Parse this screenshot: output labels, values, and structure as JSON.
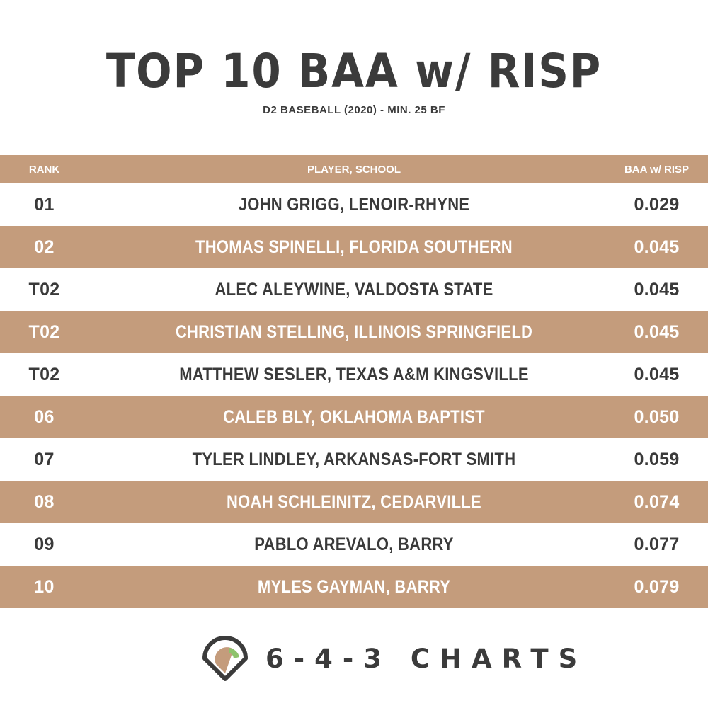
{
  "title": "TOP 10 BAA w/ RISP",
  "subtitle": "D2 BASEBALL (2020) - MIN. 25 BF",
  "colors": {
    "stripe": "#c49c7c",
    "text_dark": "#3a3a3a",
    "text_light": "#ffffff",
    "logo_green": "#8dc26b",
    "logo_tan": "#c49c7c"
  },
  "chart_data": {
    "type": "table",
    "columns": [
      "RANK",
      "PLAYER, SCHOOL",
      "BAA w/ RISP"
    ],
    "rows": [
      {
        "rank": "01",
        "player": "JOHN GRIGG, LENOIR-RHYNE",
        "baa": "0.029"
      },
      {
        "rank": "02",
        "player": "THOMAS SPINELLI, FLORIDA SOUTHERN",
        "baa": "0.045"
      },
      {
        "rank": "T02",
        "player": "ALEC ALEYWINE, VALDOSTA STATE",
        "baa": "0.045"
      },
      {
        "rank": "T02",
        "player": "CHRISTIAN STELLING, ILLINOIS SPRINGFIELD",
        "baa": "0.045"
      },
      {
        "rank": "T02",
        "player": "MATTHEW SESLER, TEXAS A&M KINGSVILLE",
        "baa": "0.045"
      },
      {
        "rank": "06",
        "player": "CALEB BLY, OKLAHOMA BAPTIST",
        "baa": "0.050"
      },
      {
        "rank": "07",
        "player": "TYLER LINDLEY, ARKANSAS-FORT SMITH",
        "baa": "0.059"
      },
      {
        "rank": "08",
        "player": "NOAH SCHLEINITZ, CEDARVILLE",
        "baa": "0.074"
      },
      {
        "rank": "09",
        "player": "PABLO AREVALO, BARRY",
        "baa": "0.077"
      },
      {
        "rank": "10",
        "player": "MYLES GAYMAN, BARRY",
        "baa": "0.079"
      }
    ]
  },
  "brand": {
    "logo_icon": "baseball-field-icon",
    "name": "6-4-3 CHARTS"
  }
}
